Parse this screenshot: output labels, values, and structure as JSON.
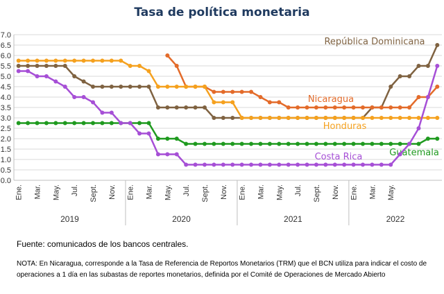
{
  "chart_data": {
    "type": "line",
    "title": "Tasa de política monetaria",
    "xlabel": "",
    "ylabel": "",
    "ylim": [
      0,
      7
    ],
    "yticks": [
      "0.0",
      "0.5",
      "1.0",
      "1.5",
      "2.0",
      "2.5",
      "3.0",
      "3.5",
      "4.0",
      "4.5",
      "5.0",
      "5.5",
      "6.0",
      "6.5",
      "7.0"
    ],
    "x_tick_labels": [
      "Ene.",
      "Mar.",
      "May.",
      "Jul.",
      "Sept.",
      "Nov.",
      "Ene.",
      "Mar.",
      "May.",
      "Jul.",
      "Sept.",
      "Nov.",
      "Ene.",
      "Mar.",
      "May.",
      "Jul.",
      "Sept.",
      "Nov.",
      "Ene.",
      "Mar.",
      "May."
    ],
    "years": [
      "2019",
      "2020",
      "2021",
      "2022"
    ],
    "grid": true,
    "legend": "inline labels",
    "series": [
      {
        "name": "República Dominicana",
        "color": "#7f6241",
        "values": [
          5.5,
          5.5,
          5.5,
          5.5,
          5.5,
          5.5,
          5.0,
          4.75,
          4.5,
          4.5,
          4.5,
          4.5,
          4.5,
          4.5,
          4.5,
          3.5,
          3.5,
          3.5,
          3.5,
          3.5,
          3.5,
          3.0,
          3.0,
          3.0,
          3.0,
          3.0,
          3.0,
          3.0,
          3.0,
          3.0,
          3.0,
          3.0,
          3.0,
          3.0,
          3.0,
          3.0,
          3.0,
          3.0,
          3.5,
          3.5,
          4.5,
          5.0,
          5.0,
          5.5,
          5.5,
          6.5
        ]
      },
      {
        "name": "Nicaragua",
        "color": "#e36b2a",
        "values": [
          null,
          null,
          null,
          null,
          null,
          null,
          null,
          null,
          null,
          null,
          null,
          null,
          null,
          null,
          null,
          null,
          6.0,
          5.5,
          4.5,
          4.5,
          4.5,
          4.25,
          4.25,
          4.25,
          4.25,
          4.25,
          4.0,
          3.75,
          3.75,
          3.5,
          3.5,
          3.5,
          3.5,
          3.5,
          3.5,
          3.5,
          3.5,
          3.5,
          3.5,
          3.5,
          3.5,
          3.5,
          3.5,
          4.0,
          4.0,
          4.5
        ]
      },
      {
        "name": "Honduras",
        "color": "#f5a11e",
        "values": [
          5.75,
          5.75,
          5.75,
          5.75,
          5.75,
          5.75,
          5.75,
          5.75,
          5.75,
          5.75,
          5.75,
          5.75,
          5.5,
          5.5,
          5.25,
          4.5,
          4.5,
          4.5,
          4.5,
          4.5,
          4.5,
          3.75,
          3.75,
          3.75,
          3.0,
          3.0,
          3.0,
          3.0,
          3.0,
          3.0,
          3.0,
          3.0,
          3.0,
          3.0,
          3.0,
          3.0,
          3.0,
          3.0,
          3.0,
          3.0,
          3.0,
          3.0,
          3.0,
          3.0,
          3.0,
          3.0
        ]
      },
      {
        "name": "Guatemala",
        "color": "#1f9a1f",
        "values": [
          2.75,
          2.75,
          2.75,
          2.75,
          2.75,
          2.75,
          2.75,
          2.75,
          2.75,
          2.75,
          2.75,
          2.75,
          2.75,
          2.75,
          2.75,
          2.0,
          2.0,
          2.0,
          1.75,
          1.75,
          1.75,
          1.75,
          1.75,
          1.75,
          1.75,
          1.75,
          1.75,
          1.75,
          1.75,
          1.75,
          1.75,
          1.75,
          1.75,
          1.75,
          1.75,
          1.75,
          1.75,
          1.75,
          1.75,
          1.75,
          1.75,
          1.75,
          1.75,
          1.75,
          2.0,
          2.0
        ]
      },
      {
        "name": "Costa Rica",
        "color": "#a64fd6",
        "values": [
          5.25,
          5.25,
          5.0,
          5.0,
          4.75,
          4.5,
          4.0,
          4.0,
          3.75,
          3.25,
          3.25,
          2.75,
          2.75,
          2.25,
          2.25,
          1.25,
          1.25,
          1.25,
          0.75,
          0.75,
          0.75,
          0.75,
          0.75,
          0.75,
          0.75,
          0.75,
          0.75,
          0.75,
          0.75,
          0.75,
          0.75,
          0.75,
          0.75,
          0.75,
          0.75,
          0.75,
          0.75,
          0.75,
          0.75,
          0.75,
          0.75,
          1.25,
          1.75,
          2.5,
          4.0,
          5.5
        ]
      }
    ]
  },
  "footer": {
    "source": "Fuente: comunicados de los bancos centrales.",
    "note": "NOTA: En Nicaragua, corresponde a la Tasa de Referencia de Reportos Monetarios (TRM) que el BCN utiliza para indicar el costo de operaciones a 1 día en las subastas de reportes monetarios, definida por el Comité de Operaciones de Mercado Abierto"
  }
}
